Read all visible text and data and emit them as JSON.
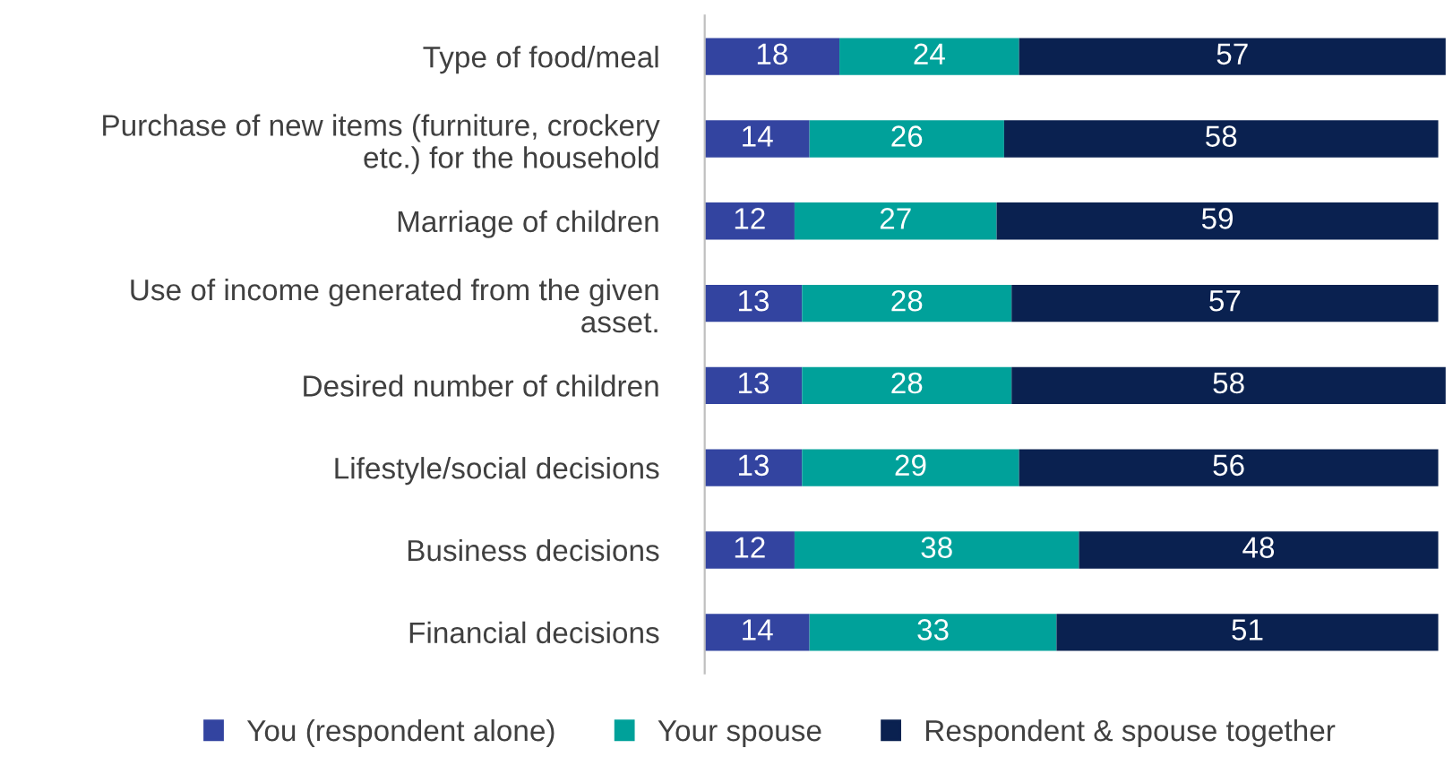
{
  "chart_data": {
    "type": "bar",
    "orientation": "horizontal",
    "stacked": true,
    "data_labels": true,
    "legend": "bottom",
    "grid": false,
    "categories": [
      "Type of food/meal",
      "Purchase of new items (furniture, crockery\netc.) for the household",
      "Marriage of children",
      "Use of income generated from the given\nasset.",
      "Desired number of children",
      "Lifestyle/social decisions",
      "Business decisions",
      "Financial decisions"
    ],
    "series": [
      {
        "name": "You (respondent alone)",
        "color": "#3344a0",
        "values": [
          18,
          14,
          12,
          13,
          13,
          13,
          12,
          14
        ]
      },
      {
        "name": "Your spouse",
        "color": "#00a19a",
        "values": [
          24,
          26,
          27,
          28,
          28,
          29,
          38,
          33
        ]
      },
      {
        "name": "Respondent & spouse together",
        "color": "#0a2150",
        "values": [
          57,
          58,
          59,
          57,
          58,
          56,
          48,
          51
        ]
      }
    ]
  }
}
